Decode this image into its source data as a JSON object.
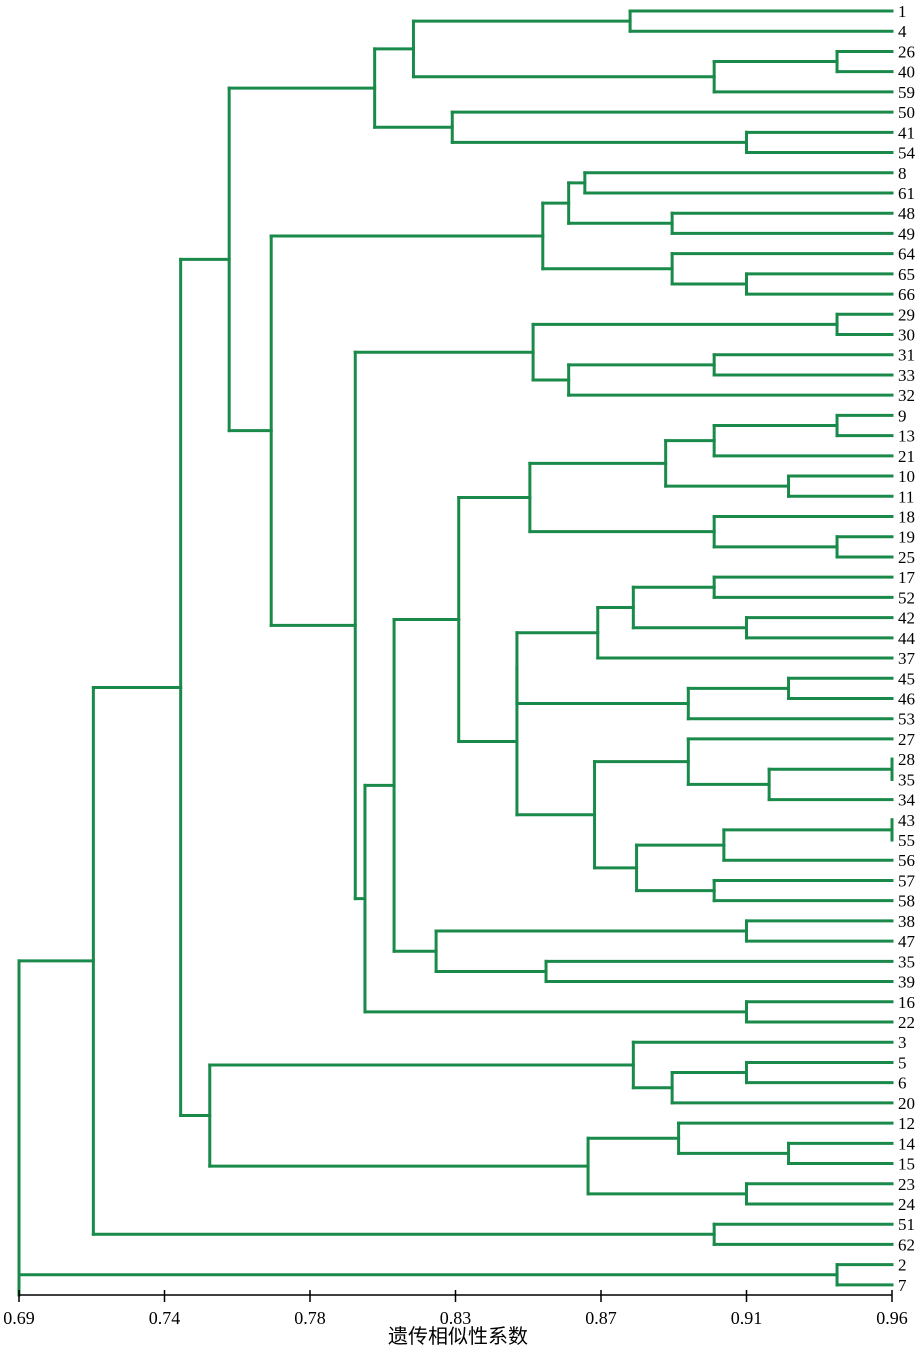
{
  "chart_data": {
    "type": "dendrogram",
    "orientation": "horizontal",
    "xlabel": "遗传相似性系数",
    "xlim": [
      0.69,
      0.96
    ],
    "xticks": [
      "0.69",
      "0.74",
      "0.78",
      "0.83",
      "0.87",
      "0.91",
      "0.96"
    ],
    "leaves": [
      "1",
      "4",
      "26",
      "40",
      "59",
      "50",
      "41",
      "54",
      "8",
      "61",
      "48",
      "49",
      "64",
      "65",
      "66",
      "29",
      "30",
      "31",
      "33",
      "32",
      "9",
      "13",
      "21",
      "10",
      "11",
      "18",
      "19",
      "25",
      "17",
      "52",
      "42",
      "44",
      "37",
      "45",
      "46",
      "53",
      "27",
      "28",
      "35",
      "34",
      "43",
      "55",
      "56",
      "57",
      "58",
      "38",
      "47",
      "35",
      "39",
      "16",
      "22",
      "3",
      "5",
      "6",
      "20",
      "12",
      "14",
      "15",
      "23",
      "24",
      "51",
      "62",
      "2",
      "7"
    ],
    "color": "#1a8a4a",
    "tree": {
      "h": 0.69,
      "c": [
        {
          "h": 0.713,
          "c": [
            {
              "h": 0.74,
              "c": [
                {
                  "h": 0.755,
                  "c": [
                    {
                      "h": 0.8,
                      "c": [
                        {
                          "h": 0.812,
                          "c": [
                            {
                              "h": 0.879,
                              "c": [
                                0,
                                1
                              ]
                            },
                            {
                              "h": 0.905,
                              "c": [
                                {
                                  "h": 0.943,
                                  "c": [
                                    2,
                                    3
                                  ]
                                },
                                4
                              ]
                            }
                          ]
                        },
                        {
                          "h": 0.824,
                          "c": [
                            5,
                            {
                              "h": 0.915,
                              "c": [
                                6,
                                7
                              ]
                            }
                          ]
                        }
                      ]
                    },
                    {
                      "h": 0.768,
                      "c": [
                        {
                          "h": 0.852,
                          "c": [
                            {
                              "h": 0.86,
                              "c": [
                                {
                                  "h": 0.865,
                                  "c": [
                                    8,
                                    9
                                  ]
                                },
                                {
                                  "h": 0.892,
                                  "c": [
                                    10,
                                    11
                                  ]
                                }
                              ]
                            },
                            {
                              "h": 0.892,
                              "c": [
                                12,
                                {
                                  "h": 0.915,
                                  "c": [
                                    13,
                                    14
                                  ]
                                }
                              ]
                            }
                          ]
                        },
                        {
                          "h": 0.794,
                          "c": [
                            {
                              "h": 0.849,
                              "c": [
                                {
                                  "h": 0.943,
                                  "c": [
                                    15,
                                    16
                                  ]
                                },
                                {
                                  "h": 0.86,
                                  "c": [
                                    {
                                      "h": 0.905,
                                      "c": [
                                        17,
                                        18
                                      ]
                                    },
                                    19
                                  ]
                                }
                              ]
                            },
                            {
                              "h": 0.797,
                              "c": [
                                {
                                  "h": 0.806,
                                  "c": [
                                    {
                                      "h": 0.826,
                                      "c": [
                                        {
                                          "h": 0.848,
                                          "c": [
                                            {
                                              "h": 0.89,
                                              "c": [
                                                {
                                                  "h": 0.905,
                                                  "c": [
                                                    {
                                                      "h": 0.943,
                                                      "c": [
                                                        20,
                                                        21
                                                      ]
                                                    },
                                                    22
                                                  ]
                                                },
                                                {
                                                  "h": 0.928,
                                                  "c": [
                                                    23,
                                                    24
                                                  ]
                                                }
                                              ]
                                            },
                                            {
                                              "h": 0.905,
                                              "c": [
                                                25,
                                                {
                                                  "h": 0.943,
                                                  "c": [
                                                    26,
                                                    27
                                                  ]
                                                }
                                              ]
                                            }
                                          ]
                                        },
                                        {
                                          "h": 0.844,
                                          "c": [
                                            {
                                              "h": 0.844,
                                              "c": [
                                                {
                                                  "h": 0.869,
                                                  "c": [
                                                    {
                                                      "h": 0.88,
                                                      "c": [
                                                        {
                                                          "h": 0.905,
                                                          "c": [
                                                            28,
                                                            29
                                                          ]
                                                        },
                                                        {
                                                          "h": 0.915,
                                                          "c": [
                                                            30,
                                                            31
                                                          ]
                                                        }
                                                      ]
                                                    },
                                                    32
                                                  ]
                                                },
                                                {
                                                  "h": 0.897,
                                                  "c": [
                                                    {
                                                      "h": 0.928,
                                                      "c": [
                                                        33,
                                                        34
                                                      ]
                                                    },
                                                    35
                                                  ]
                                                }
                                              ]
                                            },
                                            {
                                              "h": 0.868,
                                              "c": [
                                                {
                                                  "h": 0.897,
                                                  "c": [
                                                    36,
                                                    {
                                                      "h": 0.922,
                                                      "c": [
                                                        {
                                                          "h": 0.96,
                                                          "c": [
                                                            37,
                                                            38
                                                          ]
                                                        },
                                                        39
                                                      ]
                                                    }
                                                  ]
                                                },
                                                {
                                                  "h": 0.881,
                                                  "c": [
                                                    {
                                                      "h": 0.908,
                                                      "c": [
                                                        {
                                                          "h": 0.96,
                                                          "c": [
                                                            40,
                                                            41
                                                          ]
                                                        },
                                                        42
                                                      ]
                                                    },
                                                    {
                                                      "h": 0.905,
                                                      "c": [
                                                        43,
                                                        44
                                                      ]
                                                    }
                                                  ]
                                                }
                                              ]
                                            }
                                          ]
                                        }
                                      ]
                                    },
                                    {
                                      "h": 0.819,
                                      "c": [
                                        {
                                          "h": 0.915,
                                          "c": [
                                            45,
                                            46
                                          ]
                                        },
                                        {
                                          "h": 0.853,
                                          "c": [
                                            47,
                                            48
                                          ]
                                        }
                                      ]
                                    }
                                  ]
                                },
                                {
                                  "h": 0.915,
                                  "c": [
                                    49,
                                    50
                                  ]
                                }
                              ]
                            }
                          ]
                        }
                      ]
                    }
                  ]
                },
                {
                  "h": 0.749,
                  "c": [
                    {
                      "h": 0.88,
                      "c": [
                        51,
                        {
                          "h": 0.892,
                          "c": [
                            {
                              "h": 0.915,
                              "c": [
                                52,
                                53
                              ]
                            },
                            54
                          ]
                        }
                      ]
                    },
                    {
                      "h": 0.866,
                      "c": [
                        {
                          "h": 0.894,
                          "c": [
                            55,
                            {
                              "h": 0.928,
                              "c": [
                                56,
                                57
                              ]
                            }
                          ]
                        },
                        {
                          "h": 0.915,
                          "c": [
                            58,
                            59
                          ]
                        }
                      ]
                    }
                  ]
                }
              ]
            },
            {
              "h": 0.905,
              "c": [
                60,
                61
              ]
            }
          ]
        },
        {
          "h": 0.943,
          "c": [
            62,
            63
          ]
        }
      ]
    }
  }
}
